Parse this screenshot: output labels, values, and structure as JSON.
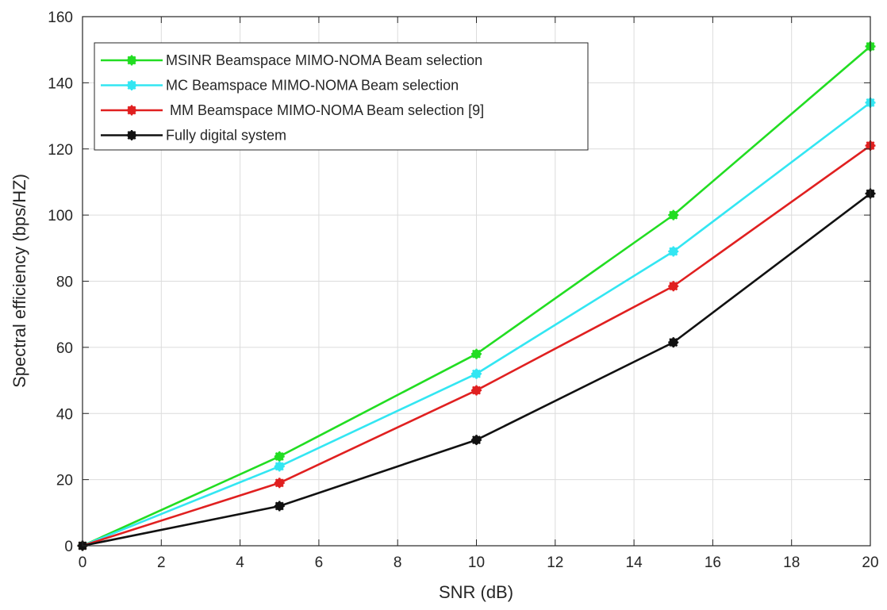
{
  "chart_data": {
    "type": "line",
    "xlabel": "SNR (dB)",
    "ylabel": "Spectral efficiency (bps/HZ)",
    "xlim": [
      0,
      20
    ],
    "ylim": [
      0,
      160
    ],
    "x_ticks": [
      0,
      2,
      4,
      6,
      8,
      10,
      12,
      14,
      16,
      18,
      20
    ],
    "y_ticks": [
      0,
      20,
      40,
      60,
      80,
      100,
      120,
      140,
      160
    ],
    "grid": true,
    "legend_position": "top-left",
    "x": [
      0,
      5,
      10,
      15,
      20
    ],
    "series": [
      {
        "name": "MSINR Beamspace MIMO-NOMA Beam selection",
        "color": "#22dd22",
        "values": [
          0,
          27,
          58,
          100,
          151
        ]
      },
      {
        "name": "MC Beamspace MIMO-NOMA Beam selection",
        "color": "#33e6f2",
        "values": [
          0,
          24,
          52,
          89,
          134
        ]
      },
      {
        "name": " MM Beamspace MIMO-NOMA Beam selection [9]",
        "color": "#e02020",
        "values": [
          0,
          19,
          47,
          78.5,
          121
        ]
      },
      {
        "name": "Fully digital system",
        "color": "#111111",
        "values": [
          0,
          12,
          32,
          61.5,
          106.5
        ]
      }
    ]
  }
}
